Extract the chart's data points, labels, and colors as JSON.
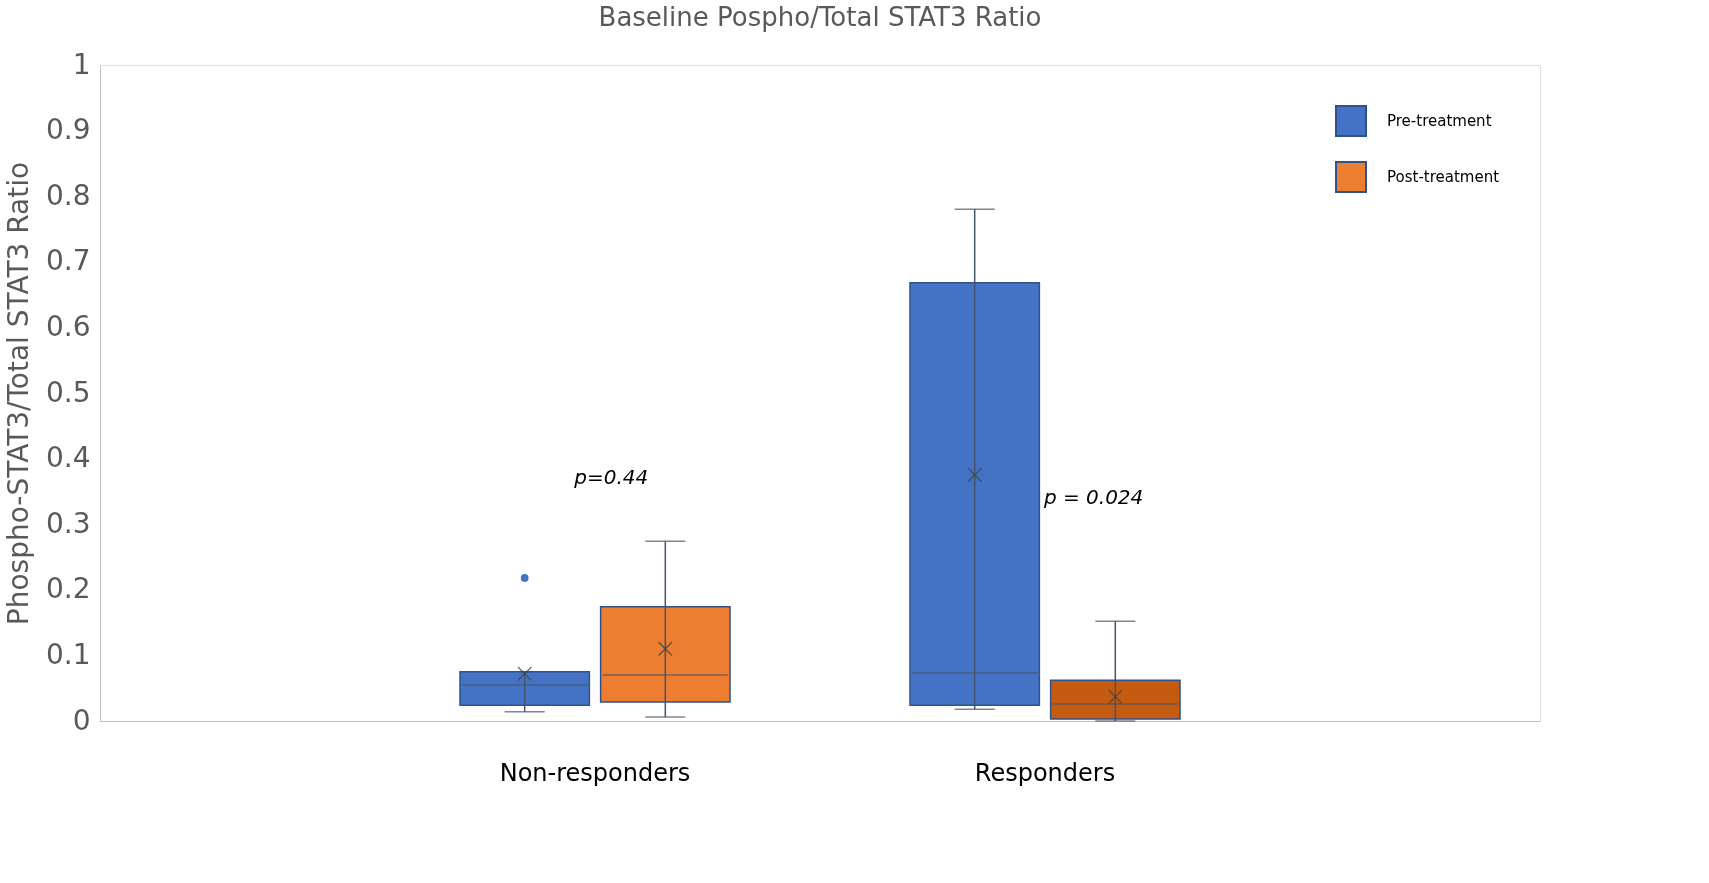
{
  "chart_data": {
    "type": "box",
    "title": "Baseline Pospho/Total STAT3 Ratio",
    "ylabel": "Phospho-STAT3/Total STAT3 Ratio",
    "categories": [
      "Non-responders",
      "Responders"
    ],
    "series": [
      {
        "name": "Pre-treatment",
        "color": "#4472c4",
        "boxes": [
          {
            "low": 0.014,
            "q1": 0.024,
            "median": 0.055,
            "q3": 0.075,
            "high": 0.075,
            "mean": 0.072,
            "outliers": [
              0.218
            ]
          },
          {
            "low": 0.018,
            "q1": 0.024,
            "median": 0.073,
            "q3": 0.668,
            "high": 0.78,
            "mean": 0.375
          }
        ]
      },
      {
        "name": "Post-treatment",
        "color": "#ed7d31",
        "colors": [
          "#ed7d31",
          "#c55a11"
        ],
        "boxes": [
          {
            "low": 0.006,
            "q1": 0.029,
            "median": 0.07,
            "q3": 0.174,
            "high": 0.274,
            "mean": 0.11
          },
          {
            "low": 0.0,
            "q1": 0.003,
            "median": 0.026,
            "q3": 0.062,
            "high": 0.152,
            "mean": 0.037
          }
        ]
      }
    ],
    "ylim": [
      0,
      1
    ],
    "yticks": [
      0,
      0.1,
      0.2,
      0.3,
      0.4,
      0.5,
      0.6,
      0.7,
      0.8,
      0.9,
      1
    ],
    "annotations": [
      "p=0.44",
      "p = 0.024"
    ],
    "legend": "top right",
    "grid": false
  }
}
